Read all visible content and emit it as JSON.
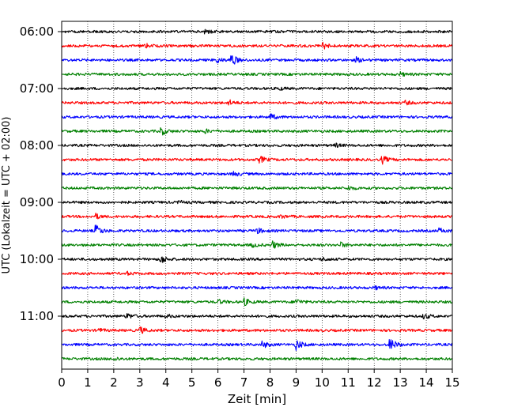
{
  "chart_data": {
    "type": "line",
    "title": "",
    "xlabel": "Zeit  [min]",
    "ylabel": "UTC (Lokalzeit = UTC + 02:00)",
    "xlim": [
      0,
      15
    ],
    "x_ticks": [
      "0",
      "1",
      "2",
      "3",
      "4",
      "5",
      "6",
      "7",
      "8",
      "9",
      "10",
      "11",
      "12",
      "13",
      "14",
      "15"
    ],
    "y_ticks": [
      "06:00",
      "07:00",
      "08:00",
      "09:00",
      "10:00",
      "11:00"
    ],
    "grid": "vertical dotted",
    "minutes_per_trace": 15,
    "trace_colors": [
      "#000000",
      "#ff0000",
      "#0000ff",
      "#008000"
    ],
    "traces": [
      {
        "start": "06:00",
        "color": "#000000",
        "events": [
          {
            "x": 5.5,
            "amp": 0.6
          }
        ]
      },
      {
        "start": "06:15",
        "color": "#ff0000",
        "events": [
          {
            "x": 10.0,
            "amp": 1.2
          },
          {
            "x": 3.2,
            "amp": 0.6
          }
        ]
      },
      {
        "start": "06:30",
        "color": "#0000ff",
        "events": [
          {
            "x": 5.9,
            "amp": 1.0
          },
          {
            "x": 6.5,
            "amp": 2.0
          },
          {
            "x": 11.3,
            "amp": 0.7
          }
        ]
      },
      {
        "start": "06:45",
        "color": "#008000",
        "events": [
          {
            "x": 13.0,
            "amp": 0.5
          }
        ]
      },
      {
        "start": "07:00",
        "color": "#000000",
        "events": [
          {
            "x": 8.3,
            "amp": 0.5
          }
        ]
      },
      {
        "start": "07:15",
        "color": "#ff0000",
        "events": [
          {
            "x": 6.4,
            "amp": 0.8
          },
          {
            "x": 13.2,
            "amp": 0.5
          }
        ]
      },
      {
        "start": "07:30",
        "color": "#0000ff",
        "events": [
          {
            "x": 8.0,
            "amp": 0.9
          }
        ]
      },
      {
        "start": "07:45",
        "color": "#008000",
        "events": [
          {
            "x": 3.8,
            "amp": 1.2
          },
          {
            "x": 5.5,
            "amp": 0.5
          }
        ]
      },
      {
        "start": "08:00",
        "color": "#000000",
        "events": [
          {
            "x": 10.5,
            "amp": 0.5
          }
        ]
      },
      {
        "start": "08:15",
        "color": "#ff0000",
        "events": [
          {
            "x": 7.6,
            "amp": 1.0
          },
          {
            "x": 12.3,
            "amp": 1.1
          }
        ]
      },
      {
        "start": "08:30",
        "color": "#0000ff",
        "events": [
          {
            "x": 6.6,
            "amp": 0.7
          }
        ]
      },
      {
        "start": "08:45",
        "color": "#008000",
        "events": [
          {
            "x": 11.0,
            "amp": 0.5
          }
        ]
      },
      {
        "start": "09:00",
        "color": "#000000",
        "events": [
          {
            "x": 4.5,
            "amp": 0.4
          }
        ]
      },
      {
        "start": "09:15",
        "color": "#ff0000",
        "events": [
          {
            "x": 1.3,
            "amp": 0.7
          },
          {
            "x": 8.4,
            "amp": 0.5
          }
        ]
      },
      {
        "start": "09:30",
        "color": "#0000ff",
        "events": [
          {
            "x": 1.3,
            "amp": 1.8
          },
          {
            "x": 7.5,
            "amp": 0.8
          },
          {
            "x": 14.5,
            "amp": 0.7
          }
        ]
      },
      {
        "start": "09:45",
        "color": "#008000",
        "events": [
          {
            "x": 8.1,
            "amp": 1.0
          },
          {
            "x": 10.7,
            "amp": 0.7
          },
          {
            "x": 7.3,
            "amp": 0.6
          }
        ]
      },
      {
        "start": "10:00",
        "color": "#000000",
        "events": [
          {
            "x": 3.8,
            "amp": 1.3
          },
          {
            "x": 10.0,
            "amp": 0.5
          }
        ]
      },
      {
        "start": "10:15",
        "color": "#ff0000",
        "events": [
          {
            "x": 2.5,
            "amp": 0.4
          }
        ]
      },
      {
        "start": "10:30",
        "color": "#0000ff",
        "events": [
          {
            "x": 12.0,
            "amp": 0.5
          }
        ]
      },
      {
        "start": "10:45",
        "color": "#008000",
        "events": [
          {
            "x": 7.0,
            "amp": 1.0
          },
          {
            "x": 9.0,
            "amp": 0.8
          },
          {
            "x": 6.0,
            "amp": 0.6
          }
        ]
      },
      {
        "start": "11:00",
        "color": "#000000",
        "events": [
          {
            "x": 2.5,
            "amp": 0.8
          },
          {
            "x": 13.9,
            "amp": 0.8
          },
          {
            "x": 4.0,
            "amp": 0.5
          }
        ]
      },
      {
        "start": "11:15",
        "color": "#ff0000",
        "events": [
          {
            "x": 3.0,
            "amp": 1.0
          },
          {
            "x": 1.4,
            "amp": 0.5
          }
        ]
      },
      {
        "start": "11:30",
        "color": "#0000ff",
        "events": [
          {
            "x": 9.0,
            "amp": 1.5
          },
          {
            "x": 7.7,
            "amp": 1.0
          },
          {
            "x": 12.6,
            "amp": 2.0
          }
        ]
      },
      {
        "start": "11:45",
        "color": "#008000",
        "events": [
          {
            "x": 2.0,
            "amp": 0.5
          }
        ]
      }
    ]
  }
}
